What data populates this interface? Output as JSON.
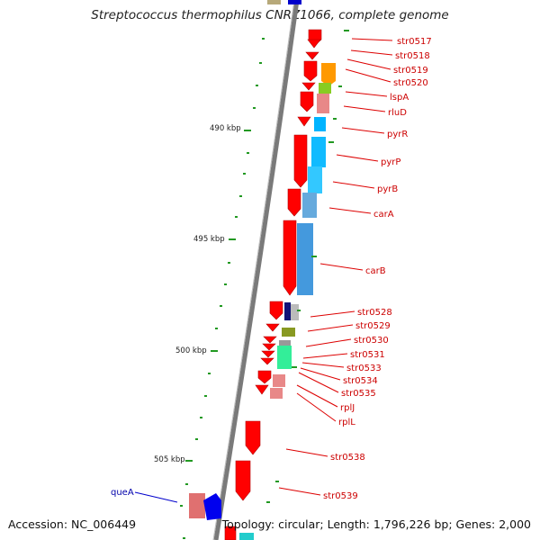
{
  "title": "Streptococcus thermophilus CNRZ1066, complete genome",
  "accession_text": "Accession: NC_006449",
  "topology_text": "Topology: circular; Length: 1,796,226 bp; Genes: 2,000",
  "scale_labels": [
    "490 kbp",
    "495 kbp",
    "500 kbp",
    "505 kbp"
  ],
  "colors": {
    "backbone": "#777777",
    "forward_gene": "#ff0000",
    "label_red": "#cc0000",
    "label_blue": "#0000aa",
    "tick_green": "#228b22"
  },
  "gene_labels": [
    {
      "name": "str0517",
      "color": "red"
    },
    {
      "name": "str0518",
      "color": "red"
    },
    {
      "name": "str0519",
      "color": "red"
    },
    {
      "name": "str0520",
      "color": "red"
    },
    {
      "name": "lspA",
      "color": "red"
    },
    {
      "name": "rluD",
      "color": "red"
    },
    {
      "name": "pyrR",
      "color": "red"
    },
    {
      "name": "pyrP",
      "color": "red"
    },
    {
      "name": "pyrB",
      "color": "red"
    },
    {
      "name": "carA",
      "color": "red"
    },
    {
      "name": "carB",
      "color": "red"
    },
    {
      "name": "str0528",
      "color": "red"
    },
    {
      "name": "str0529",
      "color": "red"
    },
    {
      "name": "str0530",
      "color": "red"
    },
    {
      "name": "str0531",
      "color": "red"
    },
    {
      "name": "str0533",
      "color": "red"
    },
    {
      "name": "str0534",
      "color": "red"
    },
    {
      "name": "str0535",
      "color": "red"
    },
    {
      "name": "rplJ",
      "color": "red"
    },
    {
      "name": "rplL",
      "color": "red"
    },
    {
      "name": "str0538",
      "color": "red"
    },
    {
      "name": "str0539",
      "color": "red"
    },
    {
      "name": "queA",
      "color": "blue"
    }
  ]
}
